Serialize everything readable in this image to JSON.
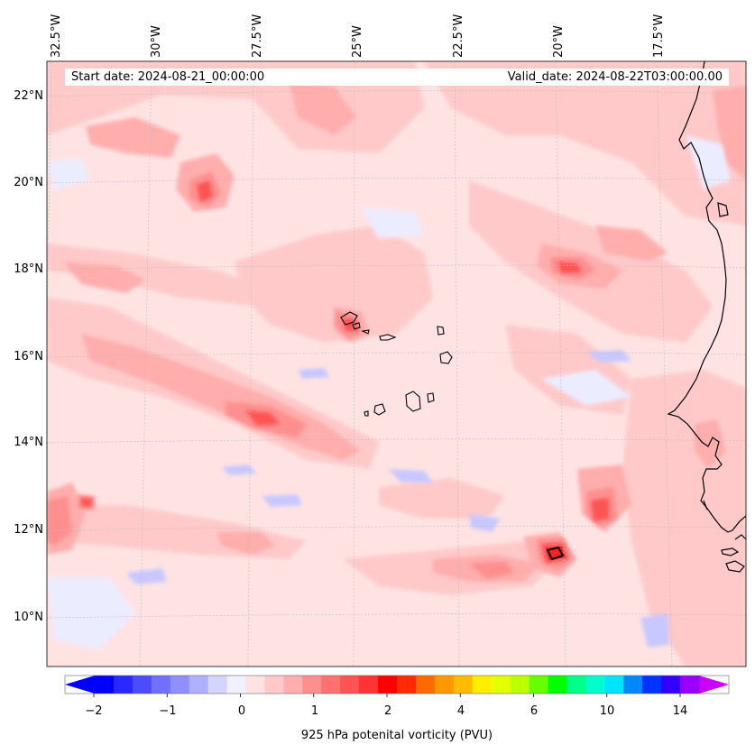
{
  "map": {
    "start_date": "Start date: 2024-08-21_00:00:00",
    "valid_date": "Valid_date: 2024-08-22T03:00:00.00",
    "region": "Eastern tropical Atlantic / Cape Verde / West Africa coast",
    "lon_labels": [
      "32.5°W",
      "30°W",
      "27.5°W",
      "25°W",
      "22.5°W",
      "20°W",
      "17.5°W"
    ],
    "lat_labels": [
      "22°N",
      "20°N",
      "18°N",
      "16°N",
      "14°N",
      "12°N",
      "10°N"
    ],
    "colors": {
      "background_pv": "#ffe3e3",
      "light_pink": "#ffc9c9",
      "pink": "#ffadad",
      "salmon": "#ff8f8f",
      "red": "#ff5252",
      "deep_red": "#ff2020",
      "light_blue": "#e8e8ff",
      "blue": "#c8c8ff",
      "coast": "#000000",
      "grid": "#bbbbbb"
    }
  },
  "colorbar": {
    "label": "925 hPa potenital vorticity (PVU)",
    "tick_labels": [
      "−2",
      "−1",
      "0",
      "1",
      "2",
      "4",
      "6",
      "10",
      "14"
    ],
    "colors": [
      "#0000ff",
      "#2828ff",
      "#4c4cff",
      "#7070ff",
      "#8f8fff",
      "#b0b0ff",
      "#d4d4ff",
      "#f0f0ff",
      "#ffe3e3",
      "#ffc9c9",
      "#ffadad",
      "#ff8f8f",
      "#ff7070",
      "#ff5252",
      "#ff3333",
      "#ff0000",
      "#ff2a00",
      "#ff6a00",
      "#ff9900",
      "#ffbb00",
      "#ffee00",
      "#e6ff00",
      "#bbff00",
      "#66ff00",
      "#00ff00",
      "#00ff88",
      "#00ffcc",
      "#00e5ff",
      "#0088ff",
      "#0033ff",
      "#3300ff",
      "#9900ff"
    ],
    "end_colors": {
      "low": "#0000ff",
      "high": "#cc00ff"
    }
  }
}
